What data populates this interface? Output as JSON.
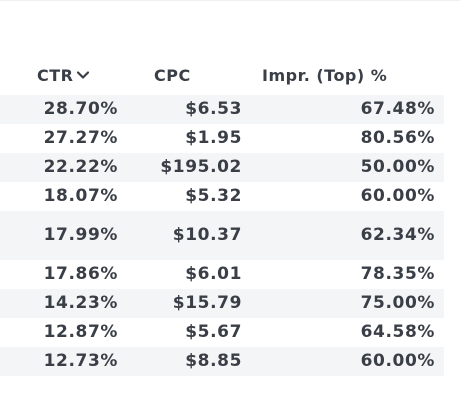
{
  "table": {
    "columns": {
      "ctr": "CTR",
      "cpc": "CPC",
      "impr_top": "Impr. (Top) %"
    },
    "sort": {
      "column": "CTR",
      "direction": "descending",
      "icon": "chevron-down-icon"
    },
    "rows": [
      {
        "ctr": "28.70%",
        "cpc": "$6.53",
        "impr_top": "67.48%"
      },
      {
        "ctr": "27.27%",
        "cpc": "$1.95",
        "impr_top": "80.56%"
      },
      {
        "ctr": "22.22%",
        "cpc": "$195.02",
        "impr_top": "50.00%"
      },
      {
        "ctr": "18.07%",
        "cpc": "$5.32",
        "impr_top": "60.00%"
      },
      {
        "ctr": "17.99%",
        "cpc": "$10.37",
        "impr_top": "62.34%"
      },
      {
        "ctr": "17.86%",
        "cpc": "$6.01",
        "impr_top": "78.35%"
      },
      {
        "ctr": "14.23%",
        "cpc": "$15.79",
        "impr_top": "75.00%"
      },
      {
        "ctr": "12.87%",
        "cpc": "$5.67",
        "impr_top": "64.58%"
      },
      {
        "ctr": "12.73%",
        "cpc": "$8.85",
        "impr_top": "60.00%"
      }
    ]
  },
  "colors": {
    "text": "#3a3f47",
    "row_shade": "#f4f5f6",
    "background": "#ffffff"
  }
}
